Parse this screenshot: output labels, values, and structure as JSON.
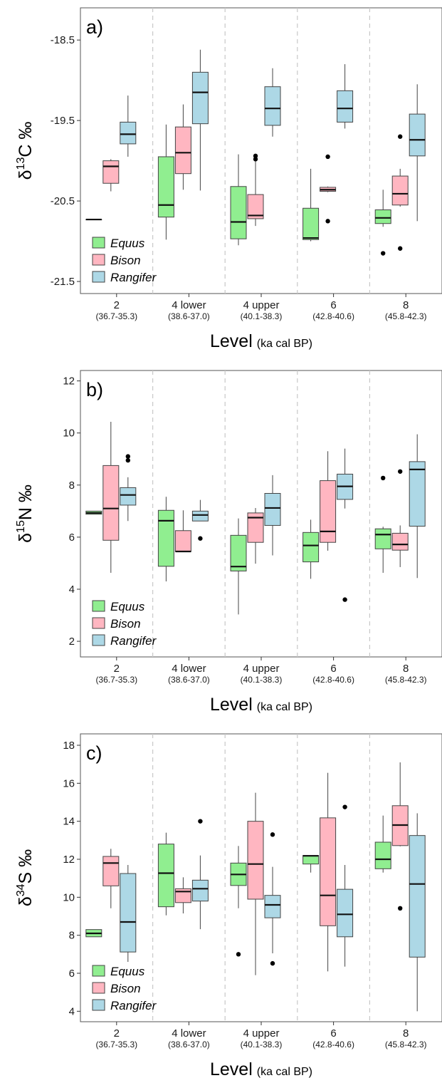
{
  "colors": {
    "Equus": "#90EE90",
    "Bison": "#FFB6C1",
    "Rangifer": "#ADD8E6"
  },
  "legend": [
    "Equus",
    "Bison",
    "Rangifer"
  ],
  "chart_data": [
    {
      "type": "box",
      "panel_label": "a)",
      "ylabel": {
        "delta": "δ",
        "sup": "13",
        "element": "C",
        "unit": " ‰"
      },
      "xlabel": {
        "main": "Level",
        "unit": "(ka cal BP)"
      },
      "ylim": [
        -21.65,
        -18.1
      ],
      "yticks": [
        -18.5,
        -19.5,
        -20.5,
        -21.5
      ],
      "ytick_labels": [
        "-18.5",
        "-19.5",
        "-20.5",
        "-21.5"
      ],
      "categories": [
        "2",
        "4 lower",
        "4 upper",
        "6",
        "8"
      ],
      "category_ranges": [
        "(36.7-35.3)",
        "(38.6-37.0)",
        "(40.1-38.3)",
        "(42.8-40.6)",
        "(45.8-42.3)"
      ],
      "series": [
        {
          "name": "Equus",
          "boxes": [
            {
              "min": -20.73,
              "q1": -20.73,
              "median": -20.73,
              "q3": -20.73,
              "max": -20.73,
              "outliers": []
            },
            {
              "min": -20.98,
              "q1": -20.7,
              "median": -20.55,
              "q3": -19.95,
              "max": -19.55,
              "outliers": []
            },
            {
              "min": -21.05,
              "q1": -20.97,
              "median": -20.76,
              "q3": -20.32,
              "max": -19.92,
              "outliers": []
            },
            {
              "min": -21.0,
              "q1": -20.98,
              "median": -20.96,
              "q3": -20.59,
              "max": -20.1,
              "outliers": []
            },
            {
              "min": -20.82,
              "q1": -20.78,
              "median": -20.71,
              "q3": -20.61,
              "max": -20.36,
              "outliers": [
                -21.15
              ]
            }
          ]
        },
        {
          "name": "Bison",
          "boxes": [
            {
              "min": -20.38,
              "q1": -20.28,
              "median": -20.07,
              "q3": -20.0,
              "max": -19.98,
              "outliers": []
            },
            {
              "min": -20.36,
              "q1": -20.16,
              "median": -19.9,
              "q3": -19.58,
              "max": -19.3,
              "outliers": []
            },
            {
              "min": -20.81,
              "q1": -20.72,
              "median": -20.68,
              "q3": -20.42,
              "max": -20.0,
              "outliers": [
                -19.94,
                -19.98
              ]
            },
            {
              "min": -20.39,
              "q1": -20.38,
              "median": -20.36,
              "q3": -20.33,
              "max": -20.32,
              "outliers": [
                -19.95,
                -20.75
              ]
            },
            {
              "min": -20.57,
              "q1": -20.55,
              "median": -20.41,
              "q3": -20.19,
              "max": -20.1,
              "outliers": [
                -19.7,
                -21.09
              ]
            }
          ]
        },
        {
          "name": "Rangifer",
          "boxes": [
            {
              "min": -19.95,
              "q1": -19.79,
              "median": -19.67,
              "q3": -19.52,
              "max": -19.19,
              "outliers": []
            },
            {
              "min": -20.37,
              "q1": -19.54,
              "median": -19.15,
              "q3": -18.9,
              "max": -18.62,
              "outliers": []
            },
            {
              "min": -19.7,
              "q1": -19.56,
              "median": -19.35,
              "q3": -19.08,
              "max": -18.85,
              "outliers": []
            },
            {
              "min": -19.6,
              "q1": -19.52,
              "median": -19.35,
              "q3": -19.13,
              "max": -18.8,
              "outliers": []
            },
            {
              "min": -20.75,
              "q1": -19.94,
              "median": -19.74,
              "q3": -19.42,
              "max": -19.05,
              "outliers": []
            }
          ]
        }
      ]
    },
    {
      "type": "box",
      "panel_label": "b)",
      "ylabel": {
        "delta": "δ",
        "sup": "15",
        "element": "N",
        "unit": " ‰"
      },
      "xlabel": {
        "main": "Level",
        "unit": "(ka cal BP)"
      },
      "ylim": [
        1.4,
        12.4
      ],
      "yticks": [
        2,
        4,
        6,
        8,
        10,
        12
      ],
      "ytick_labels": [
        "2",
        "4",
        "6",
        "8",
        "10",
        "12"
      ],
      "categories": [
        "2",
        "4 lower",
        "4 upper",
        "6",
        "8"
      ],
      "category_ranges": [
        "(36.7-35.3)",
        "(38.6-37.0)",
        "(40.1-38.3)",
        "(42.8-40.6)",
        "(45.8-42.3)"
      ],
      "series": [
        {
          "name": "Equus",
          "boxes": [
            {
              "min": 6.88,
              "q1": 6.88,
              "median": 6.93,
              "q3": 7.0,
              "max": 7.0,
              "outliers": []
            },
            {
              "min": 4.3,
              "q1": 4.88,
              "median": 6.63,
              "q3": 7.03,
              "max": 7.55,
              "outliers": []
            },
            {
              "min": 3.03,
              "q1": 4.7,
              "median": 4.87,
              "q3": 6.07,
              "max": 6.72,
              "outliers": []
            },
            {
              "min": 4.4,
              "q1": 5.05,
              "median": 5.68,
              "q3": 6.18,
              "max": 6.67,
              "outliers": []
            },
            {
              "min": 4.63,
              "q1": 5.55,
              "median": 6.1,
              "q3": 6.32,
              "max": 6.4,
              "outliers": [
                8.27
              ]
            }
          ]
        },
        {
          "name": "Bison",
          "boxes": [
            {
              "min": 4.63,
              "q1": 5.88,
              "median": 7.1,
              "q3": 8.75,
              "max": 10.43,
              "outliers": []
            },
            {
              "min": 5.43,
              "q1": 5.45,
              "median": 5.45,
              "q3": 6.25,
              "max": 7.03,
              "outliers": []
            },
            {
              "min": 4.98,
              "q1": 5.8,
              "median": 6.75,
              "q3": 6.93,
              "max": 7.12,
              "outliers": []
            },
            {
              "min": 5.48,
              "q1": 5.8,
              "median": 6.22,
              "q3": 8.17,
              "max": 9.3,
              "outliers": []
            },
            {
              "min": 4.85,
              "q1": 5.5,
              "median": 5.72,
              "q3": 6.15,
              "max": 6.45,
              "outliers": [
                8.52
              ]
            }
          ]
        },
        {
          "name": "Rangifer",
          "boxes": [
            {
              "min": 6.62,
              "q1": 7.23,
              "median": 7.62,
              "q3": 7.9,
              "max": 8.3,
              "outliers": [
                9.1,
                8.95
              ]
            },
            {
              "min": 6.62,
              "q1": 6.62,
              "median": 6.85,
              "q3": 7.0,
              "max": 7.43,
              "outliers": [
                5.95
              ]
            },
            {
              "min": 5.3,
              "q1": 6.45,
              "median": 7.12,
              "q3": 7.68,
              "max": 8.38,
              "outliers": []
            },
            {
              "min": 7.1,
              "q1": 7.45,
              "median": 7.95,
              "q3": 8.42,
              "max": 9.4,
              "outliers": [
                3.6
              ]
            },
            {
              "min": 4.43,
              "q1": 6.42,
              "median": 8.6,
              "q3": 8.9,
              "max": 9.95,
              "outliers": []
            }
          ]
        }
      ]
    },
    {
      "type": "box",
      "panel_label": "c)",
      "ylabel": {
        "delta": "δ",
        "sup": "34",
        "element": "S",
        "unit": " ‰"
      },
      "xlabel": {
        "main": "Level",
        "unit": "(ka cal BP)"
      },
      "ylim": [
        3.45,
        18.6
      ],
      "yticks": [
        4,
        6,
        8,
        10,
        12,
        14,
        16,
        18
      ],
      "ytick_labels": [
        "4",
        "6",
        "8",
        "10",
        "12",
        "14",
        "16",
        "18"
      ],
      "categories": [
        "2",
        "4 lower",
        "4 upper",
        "6",
        "8"
      ],
      "category_ranges": [
        "(36.7-35.3)",
        "(38.6-37.0)",
        "(40.1-38.3)",
        "(42.8-40.6)",
        "(45.8-42.3)"
      ],
      "series": [
        {
          "name": "Equus",
          "boxes": [
            {
              "min": 7.92,
              "q1": 7.92,
              "median": 8.1,
              "q3": 8.3,
              "max": 8.3,
              "outliers": []
            },
            {
              "min": 9.05,
              "q1": 9.5,
              "median": 11.27,
              "q3": 12.8,
              "max": 13.4,
              "outliers": []
            },
            {
              "min": 9.42,
              "q1": 10.62,
              "median": 11.2,
              "q3": 11.8,
              "max": 12.7,
              "outliers": [
                7.0
              ]
            },
            {
              "min": 11.3,
              "q1": 11.75,
              "median": 12.18,
              "q3": 12.2,
              "max": 12.2,
              "outliers": []
            },
            {
              "min": 11.3,
              "q1": 11.5,
              "median": 12.0,
              "q3": 12.9,
              "max": 14.3,
              "outliers": []
            }
          ]
        },
        {
          "name": "Bison",
          "boxes": [
            {
              "min": 9.42,
              "q1": 10.6,
              "median": 11.8,
              "q3": 12.15,
              "max": 12.55,
              "outliers": []
            },
            {
              "min": 9.15,
              "q1": 9.72,
              "median": 10.3,
              "q3": 10.45,
              "max": 11.05,
              "outliers": []
            },
            {
              "min": 5.9,
              "q1": 9.9,
              "median": 11.75,
              "q3": 14.0,
              "max": 15.5,
              "outliers": []
            },
            {
              "min": 6.1,
              "q1": 8.5,
              "median": 10.1,
              "q3": 14.18,
              "max": 16.55,
              "outliers": []
            },
            {
              "min": 12.68,
              "q1": 12.72,
              "median": 13.8,
              "q3": 14.82,
              "max": 17.1,
              "outliers": [
                9.42
              ]
            }
          ]
        },
        {
          "name": "Rangifer",
          "boxes": [
            {
              "min": 6.6,
              "q1": 7.12,
              "median": 8.7,
              "q3": 11.25,
              "max": 11.7,
              "outliers": []
            },
            {
              "min": 8.32,
              "q1": 9.8,
              "median": 10.45,
              "q3": 10.9,
              "max": 12.2,
              "outliers": [
                14.0
              ]
            },
            {
              "min": 7.05,
              "q1": 8.92,
              "median": 9.6,
              "q3": 10.1,
              "max": 11.6,
              "outliers": [
                13.3,
                6.52
              ]
            },
            {
              "min": 6.35,
              "q1": 7.92,
              "median": 9.1,
              "q3": 10.42,
              "max": 11.7,
              "outliers": [
                14.75
              ]
            },
            {
              "min": 4.0,
              "q1": 6.85,
              "median": 10.7,
              "q3": 13.25,
              "max": 14.42,
              "outliers": []
            }
          ]
        }
      ]
    }
  ]
}
